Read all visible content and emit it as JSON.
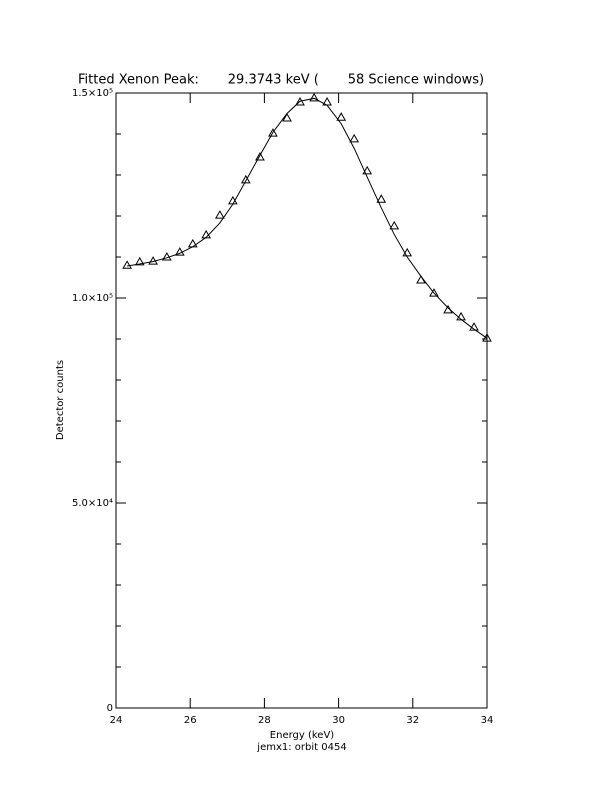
{
  "chart_data": {
    "type": "scatter",
    "title": "Fitted Xenon Peak:       29.3743 keV (       58 Science windows)",
    "x_label": "Energy (keV)",
    "y_label": "Detector counts",
    "subtitle": "jemx1: orbit 0454",
    "xlim": [
      24,
      34
    ],
    "xticks": [
      24,
      26,
      28,
      30,
      32,
      34
    ],
    "ylim": [
      0,
      150000
    ],
    "yticks": [
      {
        "value": 0,
        "label": "0"
      },
      {
        "value": 50000,
        "label": "5.0×10⁴"
      },
      {
        "value": 100000,
        "label": "1.0×10⁵"
      },
      {
        "value": 150000,
        "label": "1.5×10⁵"
      }
    ],
    "y_minor_ticks": [
      10000,
      20000,
      30000,
      40000,
      60000,
      70000,
      80000,
      90000,
      110000,
      120000,
      130000,
      140000
    ],
    "series": [
      {
        "name": "data",
        "marker": "triangle",
        "color": "#000000",
        "x": [
          24.3,
          24.64,
          25.0,
          25.37,
          25.72,
          26.07,
          26.43,
          26.8,
          27.15,
          27.5,
          27.88,
          28.23,
          28.61,
          28.96,
          29.34,
          29.69,
          30.07,
          30.42,
          30.77,
          31.15,
          31.5,
          31.85,
          32.22,
          32.57,
          32.95,
          33.3,
          33.65,
          34.0
        ],
        "values": [
          108000,
          108800,
          109000,
          110000,
          111200,
          113200,
          115400,
          120200,
          123700,
          128800,
          134400,
          140200,
          143900,
          147800,
          148800,
          147800,
          144100,
          138800,
          131000,
          124100,
          117600,
          111000,
          104400,
          101200,
          97100,
          95400,
          92900,
          90200
        ]
      },
      {
        "name": "fit",
        "marker": "line",
        "color": "#000000",
        "x": [
          24.3,
          24.64,
          25.0,
          25.37,
          25.72,
          26.07,
          26.43,
          26.8,
          27.15,
          27.5,
          27.88,
          28.23,
          28.61,
          28.96,
          29.34,
          29.69,
          30.07,
          30.42,
          30.77,
          31.15,
          31.5,
          31.85,
          32.22,
          32.57,
          32.95,
          33.3,
          33.65,
          34.0
        ],
        "values": [
          107800,
          108300,
          108900,
          109800,
          110900,
          112500,
          114800,
          118300,
          122900,
          128600,
          134800,
          140400,
          145000,
          148000,
          148700,
          147000,
          142500,
          136500,
          129500,
          122000,
          115500,
          110000,
          105300,
          101200,
          97600,
          94800,
          92400,
          90200
        ]
      }
    ]
  }
}
